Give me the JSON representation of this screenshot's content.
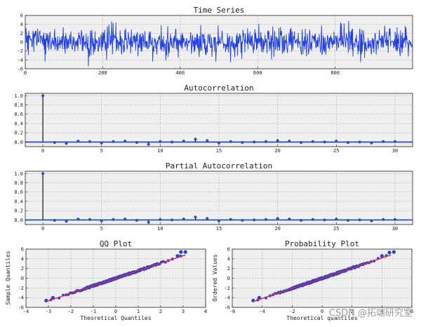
{
  "chart_data": [
    {
      "type": "line",
      "title": "Time Series",
      "xlim": [
        0,
        1000
      ],
      "ylim": [
        -6,
        6
      ],
      "xticks": [
        0,
        200,
        400,
        600,
        800
      ],
      "yticks": [
        -6,
        -4,
        -2,
        0,
        2,
        4,
        6
      ],
      "xtick_labels": [
        "0",
        "200",
        "400",
        "600",
        "800"
      ],
      "ytick_labels": [
        "-6",
        "-4",
        "-2",
        "0",
        "2",
        "4",
        "6"
      ],
      "n_points": 1000,
      "mean": 0,
      "std": 1.5,
      "grid": true,
      "color": "#1f3fe0"
    },
    {
      "type": "stem",
      "title": "Autocorrelation",
      "xlim": [
        -1.5,
        31.5
      ],
      "ylim": [
        -0.1,
        1.05
      ],
      "xticks": [
        0,
        5,
        10,
        15,
        20,
        25,
        30
      ],
      "yticks": [
        0.0,
        0.2,
        0.4,
        0.6,
        0.8,
        1.0
      ],
      "xtick_labels": [
        "0",
        "5",
        "10",
        "15",
        "20",
        "25",
        "30"
      ],
      "ytick_labels": [
        "0.0",
        "0.2",
        "0.4",
        "0.6",
        "0.8",
        "1.0"
      ],
      "lags": [
        0,
        1,
        2,
        3,
        4,
        5,
        6,
        7,
        8,
        9,
        10,
        11,
        12,
        13,
        14,
        15,
        16,
        17,
        18,
        19,
        20,
        21,
        22,
        23,
        24,
        25,
        26,
        27,
        28,
        29,
        30
      ],
      "values": [
        1.0,
        -0.01,
        -0.03,
        0.02,
        0.01,
        -0.02,
        0.01,
        0.02,
        -0.01,
        -0.05,
        0.01,
        0.0,
        0.02,
        0.06,
        0.03,
        -0.02,
        0.01,
        -0.01,
        0.0,
        0.01,
        0.03,
        0.02,
        -0.01,
        0.01,
        0.0,
        0.02,
        -0.01,
        0.0,
        -0.02,
        0.01,
        0.01
      ],
      "grid": true
    },
    {
      "type": "stem",
      "title": "Partial Autocorrelation",
      "xlim": [
        -1.5,
        31.5
      ],
      "ylim": [
        -0.1,
        1.05
      ],
      "xticks": [
        0,
        5,
        10,
        15,
        20,
        25,
        30
      ],
      "yticks": [
        0.0,
        0.2,
        0.4,
        0.6,
        0.8,
        1.0
      ],
      "xtick_labels": [
        "0",
        "5",
        "10",
        "15",
        "20",
        "25",
        "30"
      ],
      "ytick_labels": [
        "0.0",
        "0.2",
        "0.4",
        "0.6",
        "0.8",
        "1.0"
      ],
      "lags": [
        0,
        1,
        2,
        3,
        4,
        5,
        6,
        7,
        8,
        9,
        10,
        11,
        12,
        13,
        14,
        15,
        16,
        17,
        18,
        19,
        20,
        21,
        22,
        23,
        24,
        25,
        26,
        27,
        28,
        29,
        30
      ],
      "values": [
        1.0,
        -0.01,
        -0.03,
        0.02,
        0.01,
        -0.02,
        0.01,
        0.02,
        -0.01,
        -0.05,
        0.01,
        0.0,
        0.02,
        0.06,
        0.03,
        -0.02,
        0.01,
        -0.01,
        0.0,
        0.01,
        0.03,
        0.02,
        -0.01,
        0.01,
        0.0,
        0.02,
        -0.01,
        0.0,
        -0.02,
        0.01,
        0.01
      ],
      "grid": true
    },
    {
      "type": "scatter",
      "title": "QQ Plot",
      "xlabel": "Theoretical Quantiles",
      "ylabel": "Sample Quantiles",
      "xlim": [
        -4,
        4
      ],
      "ylim": [
        -6,
        6
      ],
      "xticks": [
        -4,
        -3,
        -2,
        -1,
        0,
        1,
        2,
        3,
        4
      ],
      "yticks": [
        -6,
        -4,
        -2,
        0,
        2,
        4,
        6
      ],
      "xtick_labels": [
        "-4",
        "-3",
        "-2",
        "-1",
        "0",
        "1",
        "2",
        "3",
        "4"
      ],
      "ytick_labels": [
        "-6",
        "-4",
        "-2",
        "0",
        "2",
        "4",
        "6"
      ],
      "x_range": [
        -3.1,
        3.1
      ],
      "slope": 1.55,
      "fit_line": {
        "x": [
          -3.1,
          3.1
        ],
        "y": [
          -4.8,
          4.8
        ]
      },
      "end_points": [
        [
          -3.1,
          -4.6
        ],
        [
          -2.8,
          -4.0
        ],
        [
          2.75,
          4.6
        ],
        [
          2.9,
          5.4
        ],
        [
          3.1,
          5.4
        ]
      ],
      "grid": true
    },
    {
      "type": "scatter",
      "title": "Probability Plot",
      "xlabel": "Theoretical quantiles",
      "ylabel": "Ordered Values",
      "xlim": [
        -6,
        6
      ],
      "ylim": [
        -6,
        6
      ],
      "xticks": [
        -6,
        -4,
        -2,
        0,
        2,
        4,
        6
      ],
      "yticks": [
        -6,
        -4,
        -2,
        0,
        2,
        4,
        6
      ],
      "xtick_labels": [
        "-6",
        "-4",
        "-2",
        "0",
        "2",
        "4",
        "6"
      ],
      "ytick_labels": [
        "-6",
        "-4",
        "-2",
        "0",
        "2",
        "4",
        "6"
      ],
      "x_range": [
        -4.6,
        4.6
      ],
      "slope": 1.05,
      "fit_line": {
        "x": [
          -4.6,
          4.6
        ],
        "y": [
          -4.8,
          4.8
        ]
      },
      "end_points": [
        [
          -4.6,
          -4.6
        ],
        [
          -4.2,
          -4.0
        ],
        [
          4.0,
          4.6
        ],
        [
          4.5,
          5.3
        ],
        [
          4.8,
          5.4
        ]
      ],
      "grid": true
    }
  ],
  "watermark": "CSDN @拓端研究室"
}
